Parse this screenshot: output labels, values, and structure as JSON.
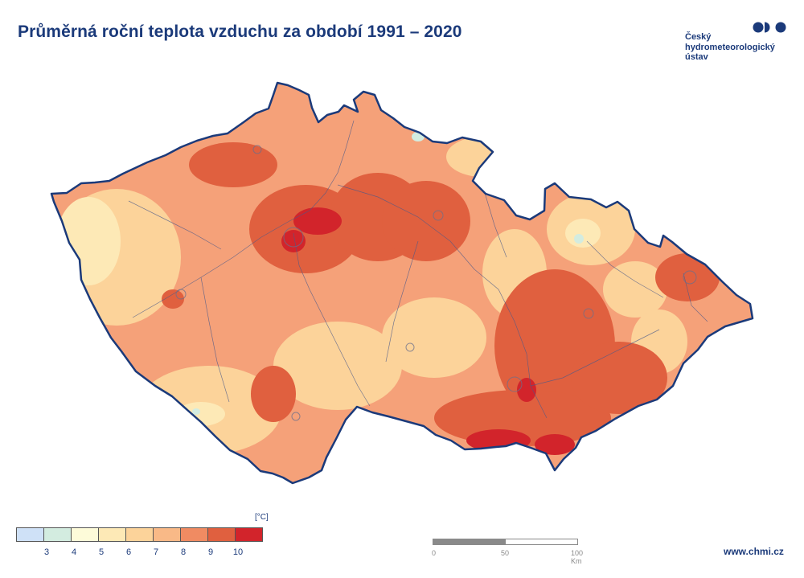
{
  "title": "Průměrná roční teplota vzduchu za období 1991 – 2020",
  "logo": {
    "name": "chmi-logo-icon",
    "lines": [
      "Český",
      "hydrometeorologický",
      "ústav"
    ],
    "color": "#1b3a7a"
  },
  "legend": {
    "unit": "[°C]",
    "ticks": [
      "3",
      "4",
      "5",
      "6",
      "7",
      "8",
      "9",
      "10"
    ],
    "colors": [
      "#cfe1f7",
      "#d3ece0",
      "#fdfbd9",
      "#fde9b6",
      "#fcd39a",
      "#f9b987",
      "#f08b62",
      "#e0603f",
      "#d2242b"
    ]
  },
  "scale_bar": {
    "labels": [
      "0",
      "50",
      "100 Km"
    ]
  },
  "website": "www.chmi.cz"
}
